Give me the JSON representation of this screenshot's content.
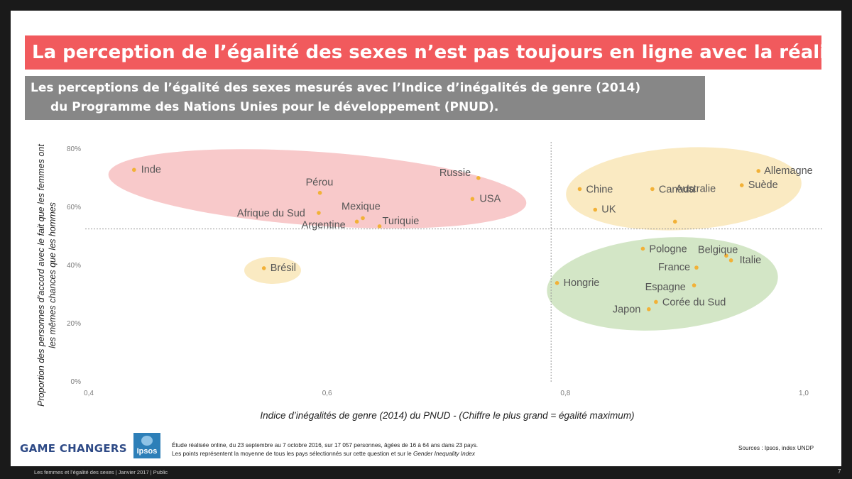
{
  "title": "La perception de l’égalité des sexes n’est pas toujours en ligne avec la réalité",
  "subtitle": {
    "line1": "Les perceptions de l’égalité des sexes mesurés avec l’Indice d’inégalités de genre (2014)",
    "line2": "du Programme des Nations Unies pour le développement (PNUD)."
  },
  "chart_data": {
    "type": "scatter",
    "xlabel": "Indice d’inégalités de genre (2014) du PNUD - (Chiffre le plus grand = égalité maximum)",
    "ylabel": "Proportion des personnes d’accord avec le fait que les femmes ont les mêmes chances que les hommes",
    "xlim": [
      0.4,
      1.0
    ],
    "ylim": [
      0,
      80
    ],
    "x_ticks": [
      {
        "v": 0.4,
        "label": "0,4"
      },
      {
        "v": 0.6,
        "label": "0,6"
      },
      {
        "v": 0.8,
        "label": "0,8"
      },
      {
        "v": 1.0,
        "label": "1,0"
      }
    ],
    "y_ticks": [
      {
        "v": 0,
        "label": "0%"
      },
      {
        "v": 20,
        "label": "20%"
      },
      {
        "v": 40,
        "label": "40%"
      },
      {
        "v": 60,
        "label": "60%"
      },
      {
        "v": 80,
        "label": "80%"
      }
    ],
    "reference_lines": {
      "x": 0.788,
      "y": 52.3
    },
    "point_color": "#f2b137",
    "points": [
      {
        "name": "Inde",
        "x": 0.438,
        "y": 72.6
      },
      {
        "name": "Pérou",
        "x": 0.594,
        "y": 64.7
      },
      {
        "name": "Russie",
        "x": 0.727,
        "y": 69.8
      },
      {
        "name": "USA",
        "x": 0.722,
        "y": 62.6
      },
      {
        "name": "Mexique",
        "x": 0.63,
        "y": 56.0
      },
      {
        "name": "Afrique du Sud",
        "x": 0.593,
        "y": 57.8
      },
      {
        "name": "Argentine",
        "x": 0.625,
        "y": 54.8
      },
      {
        "name": "Turiquie",
        "x": 0.644,
        "y": 53.2
      },
      {
        "name": "Brésil",
        "x": 0.547,
        "y": 38.8
      },
      {
        "name": "Chine",
        "x": 0.812,
        "y": 66.0
      },
      {
        "name": "Canada",
        "x": 0.873,
        "y": 66.0
      },
      {
        "name": "Allemagne",
        "x": 0.962,
        "y": 72.2
      },
      {
        "name": "Suède",
        "x": 0.948,
        "y": 67.3
      },
      {
        "name": "UK",
        "x": 0.825,
        "y": 58.9
      },
      {
        "name": "Australie",
        "x": 0.892,
        "y": 54.8
      },
      {
        "name": "Pologne",
        "x": 0.865,
        "y": 45.5
      },
      {
        "name": "Belgique",
        "x": 0.935,
        "y": 43.1
      },
      {
        "name": "Italie",
        "x": 0.939,
        "y": 41.5
      },
      {
        "name": "France",
        "x": 0.91,
        "y": 39.0
      },
      {
        "name": "Hongrie",
        "x": 0.793,
        "y": 33.7
      },
      {
        "name": "Espagne",
        "x": 0.908,
        "y": 32.9
      },
      {
        "name": "Corée du Sud",
        "x": 0.876,
        "y": 27.2
      },
      {
        "name": "Japon",
        "x": 0.87,
        "y": 24.7
      }
    ],
    "clusters": [
      {
        "name": "red",
        "color": "#f8c9ca",
        "members": [
          "Inde",
          "Pérou",
          "Russie",
          "USA",
          "Mexique",
          "Afrique du Sud",
          "Argentine",
          "Turiquie"
        ]
      },
      {
        "name": "brazil",
        "color": "#faeac2",
        "members": [
          "Brésil"
        ]
      },
      {
        "name": "yellow",
        "color": "#faeac2",
        "members": [
          "Chine",
          "Canada",
          "Allemagne",
          "Suède",
          "UK",
          "Australie"
        ]
      },
      {
        "name": "green",
        "color": "#d3e6c6",
        "members": [
          "Pologne",
          "Belgique",
          "Italie",
          "France",
          "Hongrie",
          "Espagne",
          "Corée du Sud",
          "Japon"
        ]
      }
    ]
  },
  "logo": {
    "game_changers": "GAME CHANGERS",
    "ipsos": "Ipsos"
  },
  "note": {
    "line1": "Étude réalisée online, du 23 septembre au 7 octobre 2016, sur 17 057 personnes, âgées de 16 à 64 ans dans 23 pays.",
    "line2_prefix": "Les points représentent la moyenne de tous les pays sélectionnés sur cette question et sur le ",
    "line2_em": "Gender Inequality Index"
  },
  "sources": "Sources : Ipsos, index UNDP",
  "footer": "Les femmes et l’égalité des sexes | Janvier 2017 |  Public",
  "page_number": "7"
}
